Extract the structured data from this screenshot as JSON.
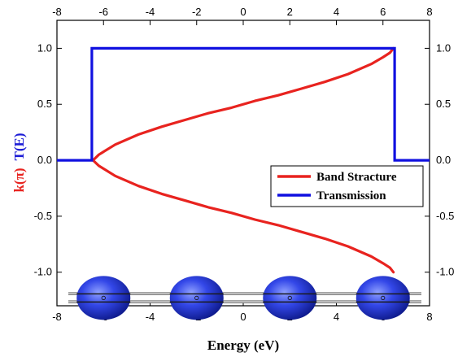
{
  "chart_data": {
    "type": "line",
    "xlabel": "Energy (eV)",
    "ylabel_parts": [
      {
        "text": "k(π)",
        "color": "#e8231f"
      },
      {
        "text": "T(E)",
        "color": "#1c1cd6"
      }
    ],
    "xlim": [
      -8,
      8
    ],
    "ylim": [
      -1.3,
      1.25
    ],
    "x_ticks": [
      -8,
      -6,
      -4,
      -2,
      0,
      2,
      4,
      6,
      8
    ],
    "x_tick_labels": [
      "-8",
      "-6",
      "-4",
      "-2",
      "0",
      "2",
      "4",
      "6",
      "8"
    ],
    "y_ticks": [
      -1.0,
      -0.5,
      0.0,
      0.5,
      1.0
    ],
    "y_tick_labels": [
      "-1.0",
      "-0.5",
      "0.0",
      "0.5",
      "1.0"
    ],
    "y_tick_labels_right": [
      "-1.0",
      "-0.5",
      "0.0",
      "0.5",
      "1.0"
    ],
    "legend_position": "right",
    "series": [
      {
        "name": "Band Stracture",
        "color": "#e8231f",
        "kind": "band",
        "x": [
          -6.45,
          -6.2,
          -5.5,
          -4.5,
          -3.5,
          -2.5,
          -1.5,
          -0.5,
          0.5,
          1.5,
          2.5,
          3.5,
          4.5,
          5.5,
          6.0,
          6.3,
          6.45
        ],
        "y_upper": [
          0.0,
          0.05,
          0.14,
          0.23,
          0.3,
          0.36,
          0.42,
          0.47,
          0.53,
          0.58,
          0.64,
          0.7,
          0.77,
          0.86,
          0.92,
          0.96,
          1.0
        ],
        "y_lower": [
          0.0,
          -0.05,
          -0.14,
          -0.23,
          -0.3,
          -0.36,
          -0.42,
          -0.47,
          -0.53,
          -0.58,
          -0.64,
          -0.7,
          -0.77,
          -0.86,
          -0.92,
          -0.96,
          -1.0
        ]
      },
      {
        "name": "Transmission",
        "color": "#1010e0",
        "kind": "step",
        "x": [
          -8,
          -6.5,
          -6.5,
          6.5,
          6.5,
          8
        ],
        "y": [
          0,
          0,
          1,
          1,
          0,
          0
        ]
      }
    ],
    "atoms": {
      "x_centers": [
        -6,
        -2,
        2,
        6
      ],
      "y_center": -1.23,
      "color": "#2a3fe0"
    }
  }
}
